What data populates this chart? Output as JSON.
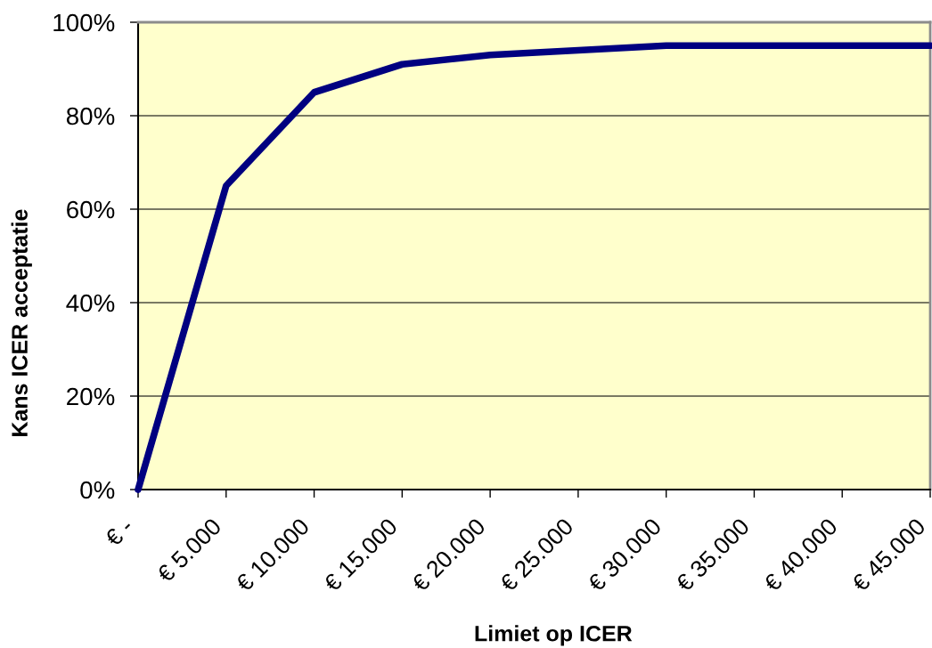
{
  "chart_data": {
    "type": "line",
    "xlabel": "Limiet op ICER",
    "ylabel": "Kans ICER acceptatie",
    "categories": [
      "€ -",
      "€ 5.000",
      "€ 10.000",
      "€ 15.000",
      "€ 20.000",
      "€ 25.000",
      "€ 30.000",
      "€ 35.000",
      "€ 40.000",
      "€ 45.000"
    ],
    "series": [
      {
        "color": "#000080",
        "values": [
          0,
          65,
          85,
          91,
          93,
          94,
          95,
          95,
          95,
          95
        ]
      }
    ],
    "ylim": [
      0,
      100
    ],
    "yticks": [
      {
        "value": 0,
        "label": "0%"
      },
      {
        "value": 20,
        "label": "20%"
      },
      {
        "value": 40,
        "label": "40%"
      },
      {
        "value": 60,
        "label": "60%"
      },
      {
        "value": 80,
        "label": "80%"
      },
      {
        "value": 100,
        "label": "100%"
      }
    ],
    "grid": "y",
    "line_style": "solid"
  }
}
